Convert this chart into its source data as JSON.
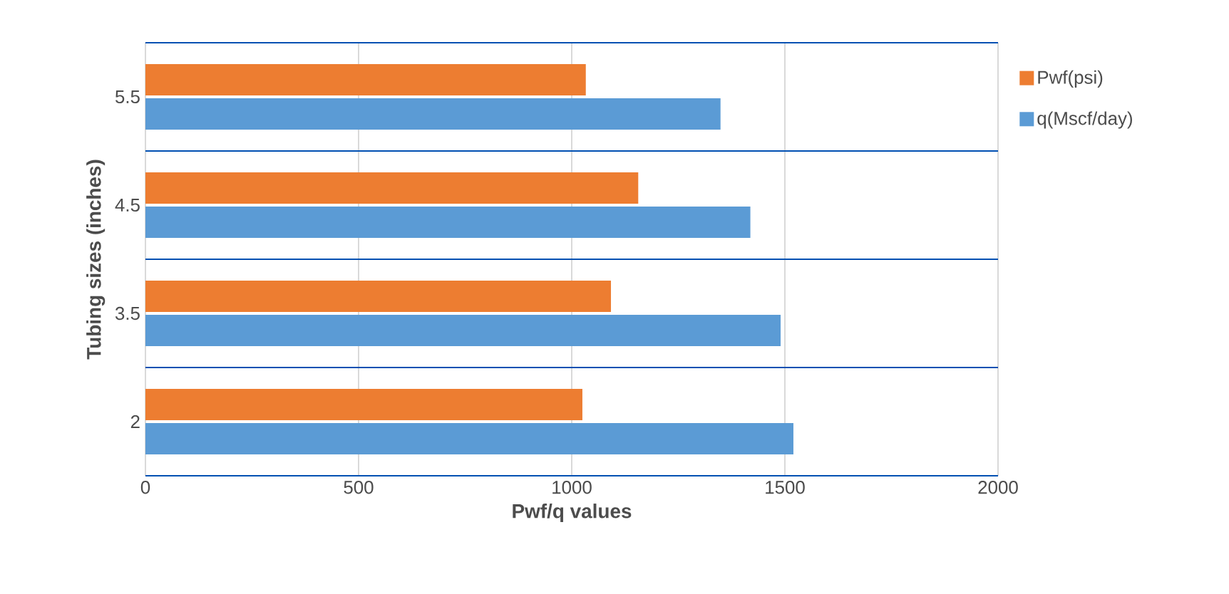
{
  "chart_data": {
    "type": "bar",
    "orientation": "horizontal",
    "xlabel": "Pwf/q values",
    "ylabel": "Tubing sizes (inches)",
    "categories": [
      "5.5",
      "4.5",
      "3.5",
      "2"
    ],
    "series": [
      {
        "name": "Pwf(psi)",
        "color": "#ed7d31",
        "values": [
          1033,
          1156,
          1092,
          1025
        ]
      },
      {
        "name": "q(Mscf/day)",
        "color": "#5b9bd5",
        "values": [
          1349,
          1419,
          1490,
          1520
        ]
      }
    ],
    "xlim": [
      0,
      2000
    ],
    "xticks": [
      0,
      500,
      1000,
      1500,
      2000
    ],
    "grid": true,
    "legend": "right"
  }
}
